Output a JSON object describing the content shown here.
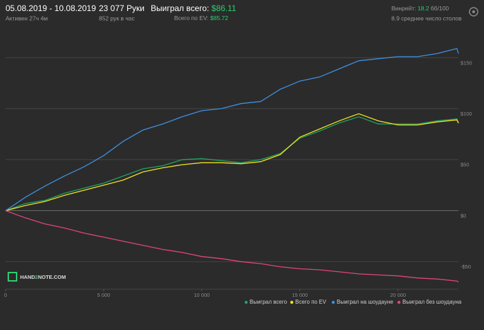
{
  "header": {
    "date_range": "05.08.2019 - 10.08.2019",
    "active": "Активен 27ч 4м",
    "hands": "23 077 Руки",
    "hands_per_hour": "852 рук в час",
    "won_label": "Выиграл всего:",
    "won_value": "$86.11",
    "ev_label": "Всего по EV:",
    "ev_value": "$85.72",
    "winrate_label": "Винрейт:",
    "winrate_value": "18.2",
    "winrate_unit": "бб/100",
    "avg_tables": "8.9 среднее число столов",
    "logo": [
      "HAND",
      "2",
      "NOTE.COM"
    ]
  },
  "chart_data": {
    "type": "line",
    "x": [
      0,
      1000,
      2000,
      3000,
      4000,
      5000,
      6000,
      7000,
      8000,
      9000,
      10000,
      11000,
      12000,
      13000,
      14000,
      15000,
      16000,
      17000,
      18000,
      19000,
      20000,
      21000,
      22000,
      23000,
      23077
    ],
    "xlim": [
      0,
      23077
    ],
    "xticks": [
      0,
      {
        "value": 5000,
        "label": "5 000"
      },
      {
        "value": 10000,
        "label": "10 000"
      },
      {
        "value": 15000,
        "label": "15 000"
      },
      {
        "value": 20000,
        "label": "20 000"
      }
    ],
    "ylim": [
      -77,
      176
    ],
    "yticks": [
      {
        "value": 150,
        "label": "$150"
      },
      {
        "value": 100,
        "label": "$100"
      },
      {
        "value": 50,
        "label": "$50"
      },
      {
        "value": 0,
        "label": "$0"
      },
      {
        "value": -50,
        "label": "-$50"
      }
    ],
    "grid": true,
    "series": [
      {
        "name": "Выиграл всего",
        "color": "#1fa463",
        "values": [
          0,
          7,
          10,
          17,
          22,
          27,
          34,
          41,
          44,
          50,
          51,
          49,
          47,
          50,
          56,
          71,
          78,
          86,
          92,
          85,
          85,
          85,
          88,
          90,
          86.11
        ]
      },
      {
        "name": "Всего по EV",
        "color": "#f3e221",
        "values": [
          0,
          5,
          9,
          15,
          20,
          25,
          30,
          38,
          42,
          45,
          47,
          47,
          46,
          48,
          55,
          72,
          80,
          88,
          95,
          88,
          84,
          84,
          87,
          89,
          85.72
        ]
      },
      {
        "name": "Выиграл на шоудауне",
        "color": "#3f8fe0",
        "values": [
          0,
          13,
          24,
          34,
          43,
          54,
          68,
          79,
          85,
          92,
          98,
          100,
          105,
          107,
          119,
          127,
          131,
          139,
          147,
          149,
          151,
          151,
          154,
          159,
          154
        ]
      },
      {
        "name": "Выиграл без шоудауна",
        "color": "#e0457b",
        "values": [
          0,
          -7,
          -13,
          -17,
          -22,
          -26,
          -30,
          -34,
          -38,
          -41,
          -45,
          -47,
          -50,
          -52,
          -55,
          -57,
          -58,
          -60,
          -62,
          -63,
          -64,
          -66,
          -67,
          -69,
          -70
        ]
      }
    ]
  }
}
